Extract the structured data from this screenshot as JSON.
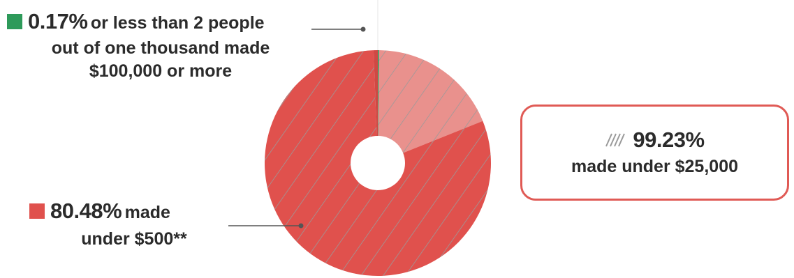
{
  "chart_data": {
    "type": "pie",
    "donut": true,
    "slices": [
      {
        "key": "100k",
        "value": 0.17,
        "color": "#2e9a5a"
      },
      {
        "key": "under25k_rest",
        "value": 18.75,
        "color": "#e9918d",
        "hatched": true
      },
      {
        "key": "under500",
        "value": 80.48,
        "color": "#e0514d",
        "hatched": true
      },
      {
        "key": "other",
        "value": 0.6,
        "color": "#d04844",
        "hatched": false
      }
    ],
    "annotations": {
      "top": {
        "value": "0.17%",
        "text_a": "or less than 2 people",
        "text_b": "out of one thousand made",
        "text_c": "$100,000 or more",
        "swatch_color": "#2e9a5a"
      },
      "bottom": {
        "value": "80.48%",
        "text_a": "made",
        "text_b": "under $500**",
        "swatch_color": "#e0514d"
      },
      "callout": {
        "value": "99.23%",
        "text": "made under $25,000",
        "icon": "hatch-icon",
        "border_color": "#e05a55"
      }
    }
  }
}
